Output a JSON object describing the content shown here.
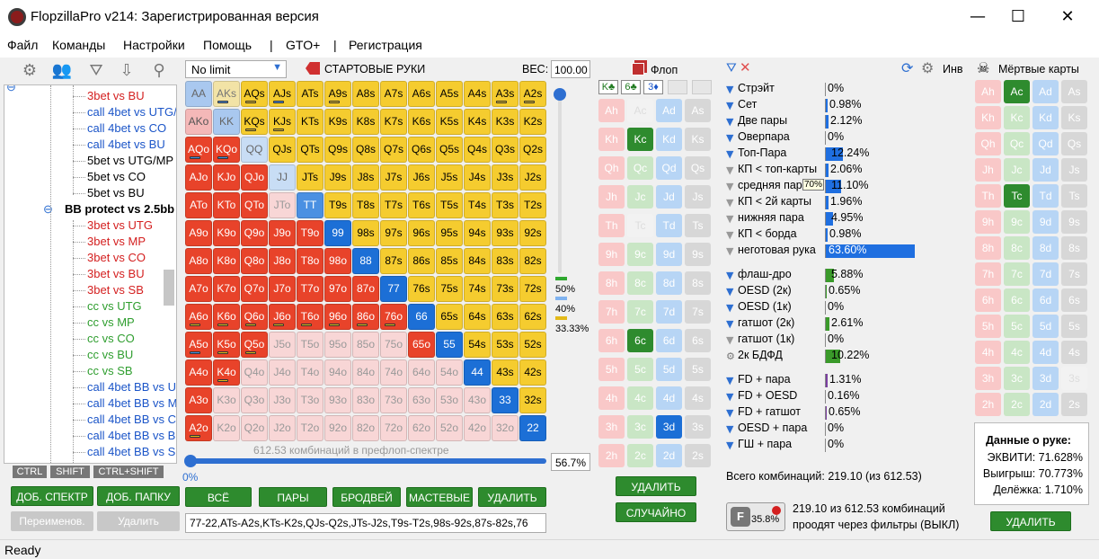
{
  "window": {
    "title": "FlopzillaPro v214: Зарегистрированная версия",
    "min": "—",
    "max": "☐",
    "close": "✕"
  },
  "menu": [
    "Файл",
    "Команды",
    "Настройки",
    "Помощь",
    "|",
    "GTO+",
    "|",
    "Регистрация"
  ],
  "left": {
    "tree": [
      {
        "text": "3bet vs BU",
        "color": "#d42020",
        "indent": 1
      },
      {
        "text": "call 4bet vs UTG/",
        "color": "#1b55c8",
        "indent": 1
      },
      {
        "text": "call 4bet vs CO",
        "color": "#1b55c8",
        "indent": 1
      },
      {
        "text": "call 4bet vs BU",
        "color": "#1b55c8",
        "indent": 1
      },
      {
        "text": "5bet vs UTG/MP",
        "color": "#000000",
        "indent": 1
      },
      {
        "text": "5bet vs CO",
        "color": "#000000",
        "indent": 1
      },
      {
        "text": "5bet vs BU",
        "color": "#000000",
        "indent": 1
      },
      {
        "text": "BB protect vs 2.5bb",
        "color": "#000000",
        "indent": 0,
        "bold": true
      },
      {
        "text": "3bet vs UTG",
        "color": "#d42020",
        "indent": 1
      },
      {
        "text": "3bet vs MP",
        "color": "#d42020",
        "indent": 1
      },
      {
        "text": "3bet vs CO",
        "color": "#d42020",
        "indent": 1
      },
      {
        "text": "3bet vs BU",
        "color": "#d42020",
        "indent": 1
      },
      {
        "text": "3bet vs SB",
        "color": "#d42020",
        "indent": 1
      },
      {
        "text": "cc vs UTG",
        "color": "#2f9e2f",
        "indent": 1
      },
      {
        "text": "cc vs MP",
        "color": "#2f9e2f",
        "indent": 1
      },
      {
        "text": "cc vs CO",
        "color": "#2f9e2f",
        "indent": 1
      },
      {
        "text": "cc vs BU",
        "color": "#2f9e2f",
        "indent": 1
      },
      {
        "text": "cc vs SB",
        "color": "#2f9e2f",
        "indent": 1
      },
      {
        "text": "call 4bet BB vs U",
        "color": "#1b55c8",
        "indent": 1
      },
      {
        "text": "call 4bet BB vs M",
        "color": "#1b55c8",
        "indent": 1
      },
      {
        "text": "call 4bet BB vs C",
        "color": "#1b55c8",
        "indent": 1
      },
      {
        "text": "call 4bet BB vs B",
        "color": "#1b55c8",
        "indent": 1
      },
      {
        "text": "call 4bet BB vs S",
        "color": "#1b55c8",
        "indent": 1
      }
    ],
    "keys": [
      "CTRL",
      "SHIFT",
      "CTRL+SHIFT"
    ],
    "btn_add_range": "ДОБ. СПЕКТР",
    "btn_add_folder": "ДОБ. ПАПКУ",
    "btn_rename": "Переименов.",
    "btn_delete": "Удалить"
  },
  "range": {
    "mode": "No limit",
    "title": "СТАРТОВЫЕ РУКИ",
    "weight_label": "ВЕС:",
    "weight_value": "100.00",
    "combos_text": "612.53 комбинаций в префлоп-спектре",
    "slider_left": "0%",
    "slider_right": "56.7%",
    "pct": [
      "50%",
      "40%",
      "33.33%"
    ],
    "buttons": [
      "ВСЁ",
      "ПАРЫ",
      "БРОДВЕЙ",
      "МАСТЕВЫЕ",
      "УДАЛИТЬ"
    ],
    "range_text": "77-22,ATs-A2s,KTs-K2s,QJs-Q2s,JTs-J2s,T9s-T2s,98s-92s,87s-82s,76"
  },
  "flop": {
    "title": "Флоп",
    "cards": [
      "K♣",
      "6♣",
      "3♦"
    ],
    "btn_delete": "УДАЛИТЬ",
    "btn_random": "СЛУЧАЙНО"
  },
  "stats": {
    "groups": [
      [
        {
          "label": "Стрэйт",
          "value": "0%",
          "bar": 0
        },
        {
          "label": "Сет",
          "value": "0.98%",
          "bar": 0.98
        },
        {
          "label": "Две пары",
          "value": "2.12%",
          "bar": 2.12
        },
        {
          "label": "Оверпара",
          "value": "0%",
          "bar": 0
        },
        {
          "label": "Топ-Пара",
          "value": "12.24%",
          "bar": 12.24
        },
        {
          "label": "КП < топ-карты",
          "value": "2.06%",
          "bar": 2.06
        },
        {
          "label": "средняя пара",
          "value": "11.10%",
          "bar": 11.1
        },
        {
          "label": "КП < 2й карты",
          "value": "1.96%",
          "bar": 1.96
        },
        {
          "label": "нижняя пара",
          "value": "4.95%",
          "bar": 4.95
        },
        {
          "label": "КП < борда",
          "value": "0.98%",
          "bar": 0.98
        },
        {
          "label": "неготовая рука",
          "value": "63.60%",
          "bar": 63.6
        }
      ],
      [
        {
          "label": "флаш-дро",
          "value": "5.88%",
          "bar": 5.88
        },
        {
          "label": "OESD (2к)",
          "value": "0.65%",
          "bar": 0.65
        },
        {
          "label": "OESD (1к)",
          "value": "0%",
          "bar": 0
        },
        {
          "label": "гатшот (2к)",
          "value": "2.61%",
          "bar": 2.61
        },
        {
          "label": "гатшот (1к)",
          "value": "0%",
          "bar": 0
        },
        {
          "label": "2к БДФД",
          "value": "10.22%",
          "bar": 10.22
        }
      ],
      [
        {
          "label": "FD + пара",
          "value": "1.31%",
          "bar": 1.31
        },
        {
          "label": "FD + OESD",
          "value": "0.16%",
          "bar": 0.16
        },
        {
          "label": "FD + гатшот",
          "value": "0.65%",
          "bar": 0.65
        },
        {
          "label": "OESD + пара",
          "value": "0%",
          "bar": 0
        },
        {
          "label": "ГШ + пара",
          "value": "0%",
          "bar": 0
        }
      ]
    ],
    "tooltip": "70%",
    "total": "Всего комбинаций: 219.10 (из 612.53)",
    "filter_pct": "35.8%",
    "filter_line1": "219.10 из 612.53 комбинаций",
    "filter_line2": "проодят через фильтры (ВЫКЛ)",
    "inv": "Инв"
  },
  "dead": {
    "title": "Мёртвые карты",
    "equity_title": "Данные о руке:",
    "equity": "ЭКВИТИ: 71.628%",
    "win": "Выигрыш: 70.773%",
    "tie": "Делёжка: 1.710%",
    "btn_delete": "УДАЛИТЬ"
  },
  "status": "Ready"
}
